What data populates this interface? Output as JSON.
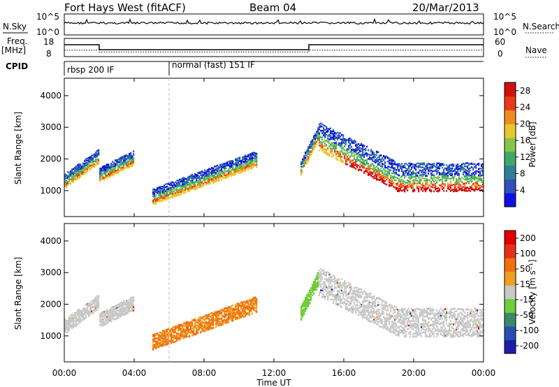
{
  "header": {
    "station": "Fort Hays West (fitACF)",
    "beam": "Beam 04",
    "date": "20/Mar/2013"
  },
  "top_panels": {
    "nsky_label": "N.Sky",
    "nsearch_label": "N.Search",
    "nsky_ticks": [
      "10^5",
      "10^0"
    ],
    "nsearch_ticks": [
      "10^5",
      "10^0"
    ],
    "freq_label": "Freq.",
    "freq_unit": "[MHz]",
    "freq_ticks": [
      "18",
      "8"
    ],
    "nave_label": "Nave",
    "nave_ticks": [
      "60",
      "0"
    ],
    "cpid_label": "CPID",
    "cpid_segments": [
      {
        "label": "rbsp 200 IF",
        "start_hour": 0
      },
      {
        "label": "normal (fast) 151 IF",
        "start_hour": 6
      }
    ],
    "freq_series": [
      [
        0,
        14.8
      ],
      [
        2,
        14.8
      ],
      [
        2,
        11.5
      ],
      [
        14,
        11.5
      ],
      [
        14,
        14.8
      ],
      [
        24,
        14.8
      ]
    ],
    "nave_series": [
      [
        0,
        20
      ],
      [
        2,
        20
      ],
      [
        2,
        12
      ],
      [
        14,
        12
      ],
      [
        14,
        20
      ],
      [
        24,
        20
      ]
    ]
  },
  "chart_data": [
    {
      "type": "heatmap",
      "name": "power",
      "xlabel": "Time UT",
      "ylabel": "Slant Range [km]",
      "xlim": [
        0,
        24
      ],
      "ylim": [
        180,
        4550
      ],
      "x_ticks": [
        "00:00",
        "04:00",
        "08:00",
        "12:00",
        "16:00",
        "20:00",
        "00:00"
      ],
      "y_ticks": [
        1000,
        2000,
        3000,
        4000
      ],
      "colorbar_label": "Power [dB]",
      "colorbar_ticks": [
        28,
        24,
        20,
        16,
        12,
        8,
        4
      ],
      "colorbar_range": [
        0,
        30
      ],
      "colorbar_colors": [
        "#1010e0",
        "#3050c0",
        "#2f7f9a",
        "#3ea86a",
        "#86c54a",
        "#e8c82a",
        "#f08a1c",
        "#e83a1a",
        "#d01010"
      ]
    },
    {
      "type": "heatmap",
      "name": "velocity",
      "xlabel": "Time UT",
      "ylabel": "Slant Range [km]",
      "xlim": [
        0,
        24
      ],
      "ylim": [
        180,
        4550
      ],
      "x_ticks": [
        "00:00",
        "04:00",
        "08:00",
        "12:00",
        "16:00",
        "20:00",
        "00:00"
      ],
      "y_ticks": [
        1000,
        2000,
        3000,
        4000
      ],
      "colorbar_label": "Velocity [m s⁻¹]",
      "colorbar_ticks": [
        "200",
        "100",
        "50",
        "15",
        "-15",
        "-50",
        "-100",
        "-200"
      ],
      "colorbar_colors": [
        "#1e1ea8",
        "#2a4fb0",
        "#3a8a6a",
        "#6fcc3a",
        "#c8c8c8",
        "#f0a020",
        "#f07010",
        "#e83018",
        "#e00000"
      ]
    }
  ],
  "x_axis_title": "Time UT"
}
